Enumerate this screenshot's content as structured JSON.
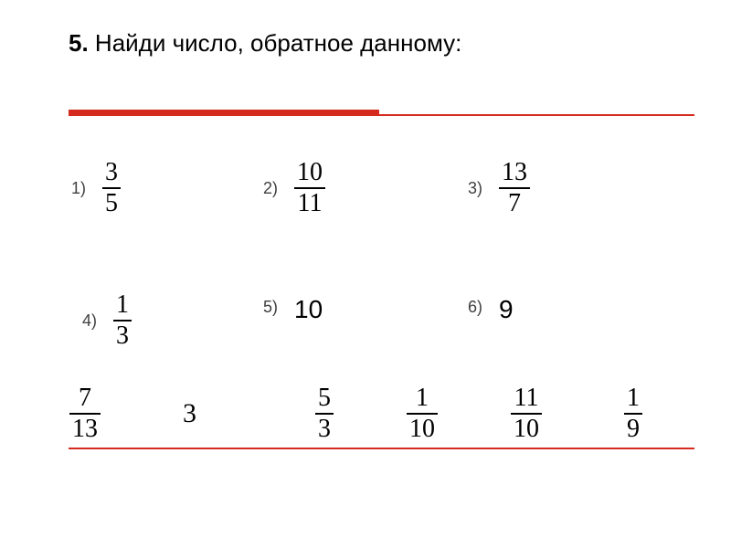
{
  "title": {
    "number": "5.",
    "text": " Найди число, обратное данному:"
  },
  "colors": {
    "accent": "#d52b1e",
    "text": "#000000",
    "num_label": "#404040",
    "background": "#ffffff"
  },
  "problems": {
    "p1": {
      "label": "1)",
      "num": "3",
      "den": "5"
    },
    "p2": {
      "label": "2)",
      "num": "10",
      "den": "11"
    },
    "p3": {
      "label": "3)",
      "num": "13",
      "den": "7"
    },
    "p4": {
      "label": "4)",
      "num": "1",
      "den": "3"
    },
    "p5": {
      "label": "5)",
      "value": "10"
    },
    "p6": {
      "label": "6)",
      "value": "9"
    }
  },
  "answers": {
    "a1": {
      "num": "7",
      "den": "13"
    },
    "a2": {
      "value": "3"
    },
    "a3": {
      "num": "5",
      "den": "3"
    },
    "a4": {
      "num": "1",
      "den": "10"
    },
    "a5": {
      "num": "11",
      "den": "10"
    },
    "a6": {
      "num": "1",
      "den": "9"
    }
  },
  "typography": {
    "title_fontsize": 26,
    "label_fontsize": 18,
    "fraction_fontsize": 28,
    "answer_whole_fontsize": 30
  }
}
